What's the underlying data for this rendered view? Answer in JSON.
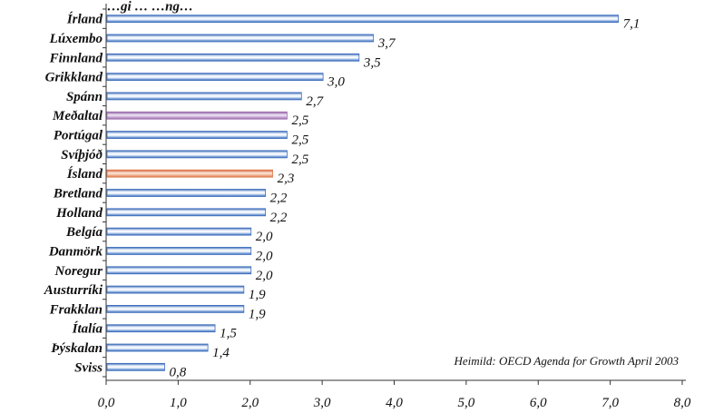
{
  "chart_data": {
    "type": "bar",
    "orientation": "horizontal",
    "title": "…gi … …ng…",
    "categories": [
      "Írland",
      "Lúxembo",
      "Finnland",
      "Grikkland",
      "Spánn",
      "Meðaltal",
      "Portúgal",
      "Svíþjóð",
      "Ísland",
      "Bretland",
      "Holland",
      "Belgía",
      "Danmörk",
      "Noregur",
      "Austurríki",
      "Frakklan",
      "Ítalía",
      "Þýskalan",
      "Sviss"
    ],
    "values": [
      7.1,
      3.7,
      3.5,
      3.0,
      2.7,
      2.5,
      2.5,
      2.5,
      2.3,
      2.2,
      2.2,
      2.0,
      2.0,
      2.0,
      1.9,
      1.9,
      1.5,
      1.4,
      0.8
    ],
    "value_labels": [
      "7,1",
      "3,7",
      "3,5",
      "3,0",
      "2,7",
      "2,5",
      "2,5",
      "2,5",
      "2,3",
      "2,2",
      "2,2",
      "2,0",
      "2,0",
      "2,0",
      "1,9",
      "1,9",
      "1,5",
      "1,4",
      "0,8"
    ],
    "highlight": {
      "Meðaltal": "purple",
      "Ísland": "orange"
    },
    "xlim": [
      0,
      8
    ],
    "xticks": [
      "0,0",
      "1,0",
      "2,0",
      "3,0",
      "4,0",
      "5,0",
      "6,0",
      "7,0",
      "8,0"
    ],
    "source_note": "Heimild: OECD Agenda for Growth April 2003",
    "grid": false,
    "colors": {
      "default": "#3f6fbf",
      "purple": "#a070b0",
      "orange": "#e07a4a",
      "axis": "#333333"
    }
  }
}
